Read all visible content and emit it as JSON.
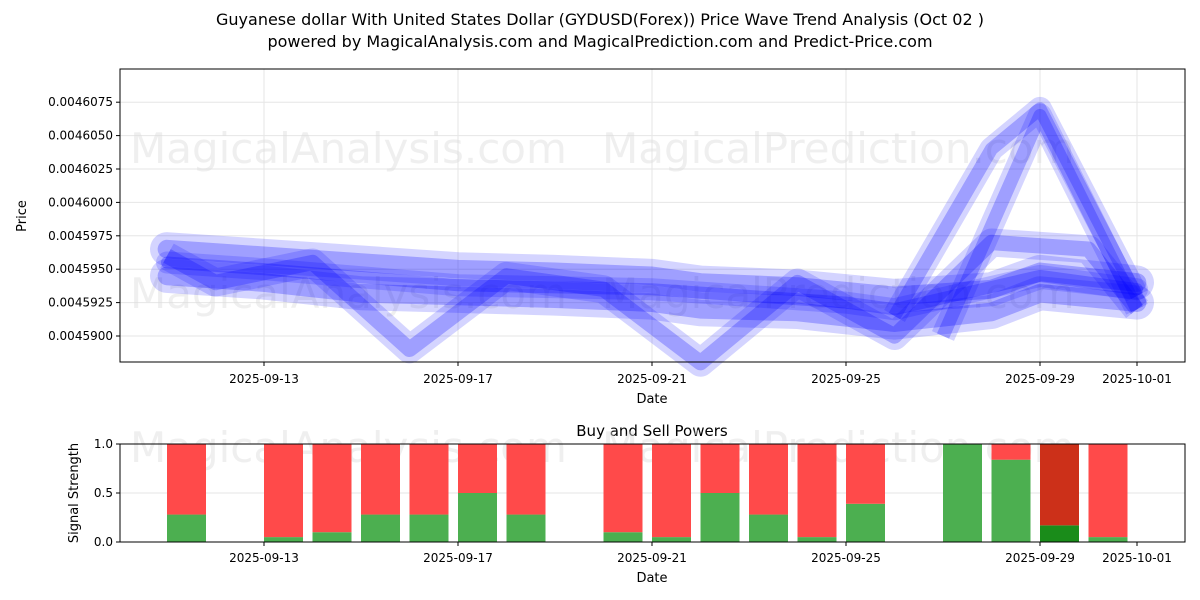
{
  "title_line1": "Guyanese dollar With United States Dollar (GYDUSD(Forex)) Price Wave Trend Analysis (Oct 02 )",
  "title_line2": "powered by MagicalAnalysis.com and MagicalPrediction.com and Predict-Price.com",
  "watermarks": [
    "MagicalAnalysis.com",
    "MagicalPrediction.com"
  ],
  "chart_data": [
    {
      "type": "line",
      "title": "",
      "xlabel": "Date",
      "ylabel": "Price",
      "ylim": [
        0.004588,
        0.0046085
      ],
      "yticks": [
        "0.0045900",
        "0.0045925",
        "0.0045950",
        "0.0045975",
        "0.0046000",
        "0.0046025",
        "0.0046050",
        "0.0046075"
      ],
      "xticks": [
        "2025-09-13",
        "2025-09-17",
        "2025-09-21",
        "2025-09-25",
        "2025-09-29",
        "2025-10-01"
      ],
      "grid": true,
      "color": "#0000ff",
      "series": [
        {
          "name": "wave-upper",
          "points": [
            [
              "2025-09-11",
              0.0045965
            ],
            [
              "2025-09-13",
              0.004596
            ],
            [
              "2025-09-15",
              0.0045955
            ],
            [
              "2025-09-17",
              0.004595
            ],
            [
              "2025-09-19",
              0.0045948
            ],
            [
              "2025-09-21",
              0.0045945
            ],
            [
              "2025-09-22",
              0.004594
            ],
            [
              "2025-09-24",
              0.0045937
            ],
            [
              "2025-09-26",
              0.004593
            ],
            [
              "2025-09-28",
              0.0045935
            ],
            [
              "2025-09-29",
              0.0045948
            ],
            [
              "2025-10-01",
              0.004594
            ]
          ]
        },
        {
          "name": "wave-lower",
          "points": [
            [
              "2025-09-11",
              0.0045945
            ],
            [
              "2025-09-13",
              0.004594
            ],
            [
              "2025-09-15",
              0.0045932
            ],
            [
              "2025-09-17",
              0.004593
            ],
            [
              "2025-09-19",
              0.0045928
            ],
            [
              "2025-09-21",
              0.0045925
            ],
            [
              "2025-09-22",
              0.004592
            ],
            [
              "2025-09-24",
              0.0045918
            ],
            [
              "2025-09-26",
              0.004591
            ],
            [
              "2025-09-28",
              0.0045918
            ],
            [
              "2025-09-29",
              0.0045932
            ],
            [
              "2025-10-01",
              0.0045925
            ]
          ]
        },
        {
          "name": "wave-mid",
          "points": [
            [
              "2025-09-11",
              0.0045955
            ],
            [
              "2025-09-13",
              0.004595
            ],
            [
              "2025-09-17",
              0.0045938
            ],
            [
              "2025-09-21",
              0.0045935
            ],
            [
              "2025-09-25",
              0.0045925
            ],
            [
              "2025-09-26",
              0.004592
            ],
            [
              "2025-09-29",
              0.0045945
            ],
            [
              "2025-10-01",
              0.0045935
            ]
          ]
        },
        {
          "name": "wave-wavy",
          "points": [
            [
              "2025-09-11",
              0.004596
            ],
            [
              "2025-09-12",
              0.004594
            ],
            [
              "2025-09-14",
              0.0045955
            ],
            [
              "2025-09-16",
              0.004589
            ],
            [
              "2025-09-18",
              0.0045945
            ],
            [
              "2025-09-20",
              0.0045935
            ],
            [
              "2025-09-22",
              0.004588
            ],
            [
              "2025-09-24",
              0.004594
            ],
            [
              "2025-09-26",
              0.00459
            ],
            [
              "2025-09-28",
              0.004597
            ],
            [
              "2025-09-30",
              0.0045965
            ],
            [
              "2025-10-01",
              0.004592
            ]
          ]
        },
        {
          "name": "wave-spike-1",
          "points": [
            [
              "2025-09-26",
              0.0045915
            ],
            [
              "2025-09-28",
              0.004604
            ],
            [
              "2025-09-29",
              0.004607
            ],
            [
              "2025-10-01",
              0.004593
            ]
          ]
        },
        {
          "name": "wave-spike-2",
          "points": [
            [
              "2025-09-27",
              0.00459
            ],
            [
              "2025-09-29",
              0.0046065
            ],
            [
              "2025-10-01",
              0.004592
            ]
          ]
        }
      ]
    },
    {
      "type": "bar",
      "title": "Buy and Sell Powers",
      "xlabel": "Date",
      "ylabel": "Signal Strength",
      "ylim": [
        0,
        1
      ],
      "yticks": [
        "0.0",
        "0.5",
        "1.0"
      ],
      "xticks": [
        "2025-09-13",
        "2025-09-17",
        "2025-09-21",
        "2025-09-25",
        "2025-09-29",
        "2025-10-01"
      ],
      "buy_color": "#4caf50",
      "sell_color": "#ff4a4a",
      "categories": [
        "2025-09-11",
        "2025-09-13",
        "2025-09-14",
        "2025-09-15",
        "2025-09-16",
        "2025-09-17",
        "2025-09-18",
        "2025-09-20",
        "2025-09-21",
        "2025-09-22",
        "2025-09-23",
        "2025-09-24",
        "2025-09-25",
        "2025-09-27",
        "2025-09-28",
        "2025-09-29",
        "2025-09-30"
      ],
      "buy": [
        0.28,
        0.05,
        0.1,
        0.28,
        0.28,
        0.5,
        0.28,
        0.1,
        0.05,
        0.5,
        0.28,
        0.05,
        0.39,
        1.0,
        0.84,
        0.17,
        0.05
      ],
      "sell": [
        0.72,
        0.95,
        0.9,
        0.72,
        0.72,
        0.5,
        0.72,
        0.9,
        0.95,
        0.5,
        0.72,
        0.95,
        0.61,
        0.0,
        0.16,
        0.83,
        0.95
      ],
      "highlight_index": 15,
      "highlight_buy_color": "#1a8c1a",
      "highlight_sell_color": "#cc3019"
    }
  ]
}
